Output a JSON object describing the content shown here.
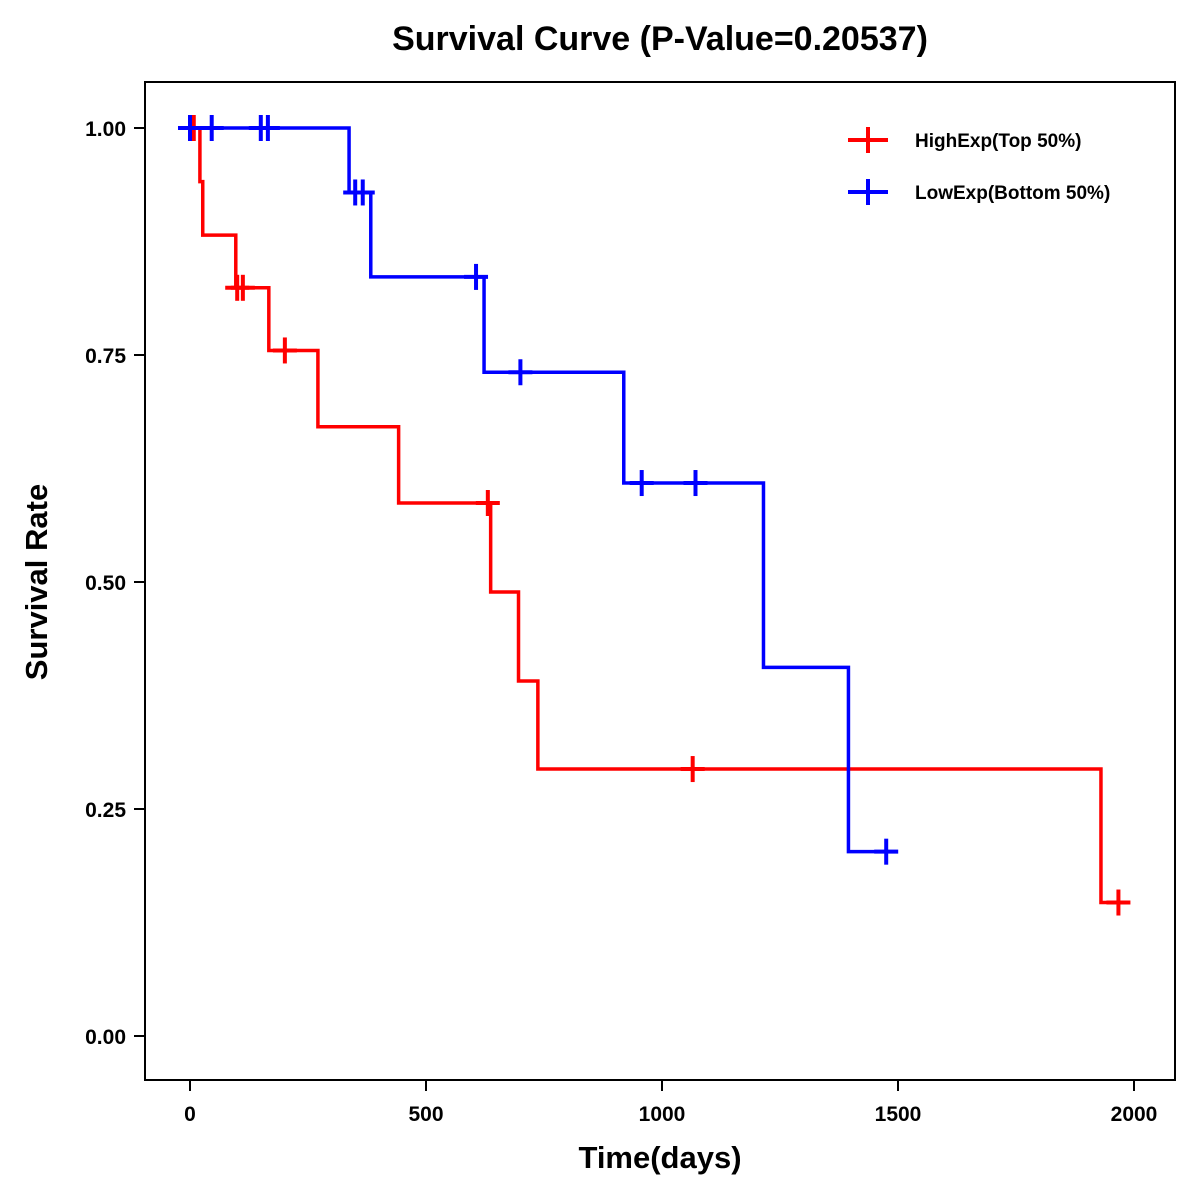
{
  "chart_data": {
    "type": "line",
    "subtype": "kaplan-meier-step",
    "title": "Survival Curve (P-Value=0.20537)",
    "xlabel": "Time(days)",
    "ylabel": "Survival Rate",
    "xlim": [
      -90,
      2090
    ],
    "ylim": [
      -0.05,
      1.05
    ],
    "x_ticks": [
      0,
      500,
      1000,
      1500,
      2000
    ],
    "x_tick_labels": [
      "0",
      "500",
      "1000",
      "1500",
      "2000"
    ],
    "y_ticks": [
      0,
      0.25,
      0.5,
      0.75,
      1.0
    ],
    "y_tick_labels": [
      "0.00",
      "0.25",
      "0.50",
      "0.75",
      "1.00"
    ],
    "grid": false,
    "legend_position": "top-right",
    "series": [
      {
        "name": "HighExp(Top 50%)",
        "color": "#FF0000",
        "steps": [
          {
            "t": 0,
            "s": 1.0
          },
          {
            "t": 21,
            "s": 0.941
          },
          {
            "t": 27,
            "s": 0.882
          },
          {
            "t": 97,
            "s": 0.824
          },
          {
            "t": 167,
            "s": 0.755
          },
          {
            "t": 271,
            "s": 0.671
          },
          {
            "t": 442,
            "s": 0.587
          },
          {
            "t": 637,
            "s": 0.489
          },
          {
            "t": 696,
            "s": 0.391
          },
          {
            "t": 737,
            "s": 0.294
          },
          {
            "t": 1930,
            "s": 0.147
          }
        ],
        "end_time": 1990,
        "censored": [
          {
            "t": 8,
            "s": 1.0
          },
          {
            "t": 100,
            "s": 0.824
          },
          {
            "t": 112,
            "s": 0.824
          },
          {
            "t": 201,
            "s": 0.755
          },
          {
            "t": 631,
            "s": 0.587
          },
          {
            "t": 1065,
            "s": 0.294
          },
          {
            "t": 1967,
            "s": 0.147
          }
        ]
      },
      {
        "name": "LowExp(Bottom 50%)",
        "color": "#0000FF",
        "steps": [
          {
            "t": -20,
            "s": 1.0
          },
          {
            "t": 337,
            "s": 0.929
          },
          {
            "t": 383,
            "s": 0.836
          },
          {
            "t": 623,
            "s": 0.731
          },
          {
            "t": 919,
            "s": 0.609
          },
          {
            "t": 1215,
            "s": 0.406
          },
          {
            "t": 1395,
            "s": 0.203
          }
        ],
        "end_time": 1500,
        "censored": [
          {
            "t": 0,
            "s": 1.0
          },
          {
            "t": 46,
            "s": 1.0
          },
          {
            "t": 150,
            "s": 1.0
          },
          {
            "t": 165,
            "s": 1.0
          },
          {
            "t": 350,
            "s": 0.929
          },
          {
            "t": 366,
            "s": 0.929
          },
          {
            "t": 606,
            "s": 0.836
          },
          {
            "t": 700,
            "s": 0.731
          },
          {
            "t": 957,
            "s": 0.609
          },
          {
            "t": 1071,
            "s": 0.609
          },
          {
            "t": 1475,
            "s": 0.203
          }
        ]
      }
    ]
  }
}
